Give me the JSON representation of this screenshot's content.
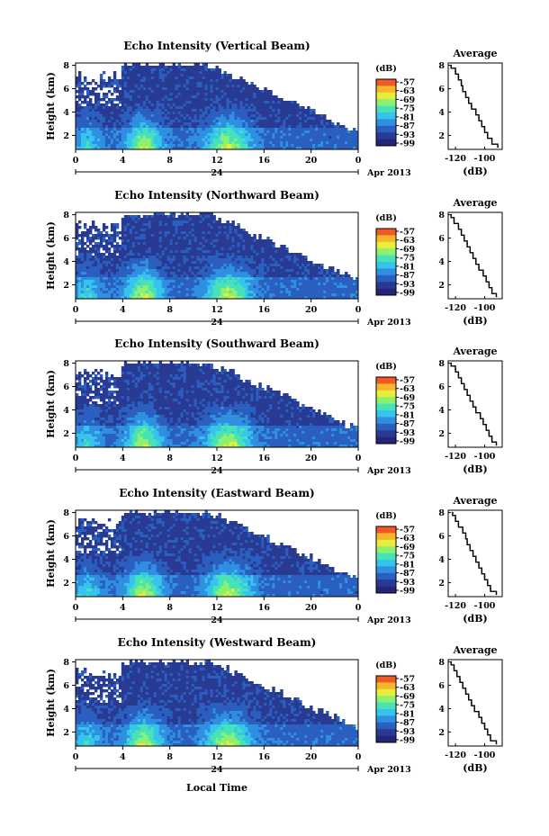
{
  "figure": {
    "xlabel": "Local Time",
    "date_label": "Apr 2013",
    "colorbar_label": "(dB)",
    "profile_title": "Average",
    "profile_xlabel": "(dB)"
  },
  "colors": {
    "background_fill": "#283a92",
    "colormap": [
      "#24247a",
      "#283a92",
      "#2a5fc0",
      "#2f8fe0",
      "#36c4ec",
      "#48e2b8",
      "#8ef070",
      "#e6ee3a",
      "#f7b52c",
      "#ee5a26"
    ]
  },
  "chart_data": [
    {
      "type": "heatmap",
      "title": "Echo Intensity (Vertical Beam)",
      "ylabel": "Height (km)",
      "x_ticks": [
        "0",
        "4",
        "8",
        "12",
        "16",
        "20",
        "0"
      ],
      "x_range": [
        0,
        24
      ],
      "day_tick_label": "24",
      "y_ticks": [
        "2",
        "4",
        "6",
        "8"
      ],
      "y_range": [
        0.8,
        8.2
      ],
      "colorbar_ticks": [
        "-57",
        "-63",
        "-69",
        "-75",
        "-81",
        "-87",
        "-93",
        "-99"
      ],
      "profile": {
        "title": "Average",
        "xlabel": "(dB)",
        "x_ticks": [
          "-120",
          "-100"
        ],
        "x_range": [
          -125,
          -88
        ],
        "y_ticks": [
          "2",
          "4",
          "6",
          "8"
        ],
        "y_range": [
          0.8,
          8.2
        ],
        "heights": [
          8.0,
          7.5,
          7.0,
          6.5,
          6.0,
          5.5,
          5.0,
          4.5,
          4.0,
          3.5,
          3.0,
          2.5,
          2.0,
          1.5,
          1.0
        ],
        "values": [
          -123,
          -120,
          -118,
          -116,
          -115,
          -113,
          -111,
          -109,
          -106,
          -104,
          -102,
          -100,
          -98,
          -95,
          -91
        ]
      }
    },
    {
      "type": "heatmap",
      "title": "Echo Intensity (Northward Beam)",
      "ylabel": "Height (km)",
      "x_ticks": [
        "0",
        "4",
        "8",
        "12",
        "16",
        "20",
        "0"
      ],
      "x_range": [
        0,
        24
      ],
      "day_tick_label": "24",
      "y_ticks": [
        "2",
        "4",
        "6",
        "8"
      ],
      "y_range": [
        0.8,
        8.2
      ],
      "colorbar_ticks": [
        "-57",
        "-63",
        "-69",
        "-75",
        "-81",
        "-87",
        "-93",
        "-99"
      ],
      "profile": {
        "title": "Average",
        "xlabel": "(dB)",
        "x_ticks": [
          "-120",
          "-100"
        ],
        "x_range": [
          -125,
          -88
        ],
        "y_ticks": [
          "2",
          "4",
          "6",
          "8"
        ],
        "y_range": [
          0.8,
          8.2
        ],
        "heights": [
          8.0,
          7.5,
          7.0,
          6.5,
          6.0,
          5.5,
          5.0,
          4.5,
          4.0,
          3.5,
          3.0,
          2.5,
          2.0,
          1.5,
          1.0
        ],
        "values": [
          -123,
          -121,
          -118,
          -116,
          -114,
          -112,
          -110,
          -108,
          -106,
          -104,
          -101,
          -99,
          -97,
          -95,
          -92
        ]
      }
    },
    {
      "type": "heatmap",
      "title": "Echo Intensity (Southward Beam)",
      "ylabel": "Height (km)",
      "x_ticks": [
        "0",
        "4",
        "8",
        "12",
        "16",
        "20",
        "0"
      ],
      "x_range": [
        0,
        24
      ],
      "day_tick_label": "24",
      "y_ticks": [
        "2",
        "4",
        "6",
        "8"
      ],
      "y_range": [
        0.8,
        8.2
      ],
      "colorbar_ticks": [
        "-57",
        "-63",
        "-69",
        "-75",
        "-81",
        "-87",
        "-93",
        "-99"
      ],
      "profile": {
        "title": "Average",
        "xlabel": "(dB)",
        "x_ticks": [
          "-120",
          "-100"
        ],
        "x_range": [
          -125,
          -88
        ],
        "y_ticks": [
          "2",
          "4",
          "6",
          "8"
        ],
        "y_range": [
          0.8,
          8.2
        ],
        "heights": [
          8.0,
          7.5,
          7.0,
          6.5,
          6.0,
          5.5,
          5.0,
          4.5,
          4.0,
          3.5,
          3.0,
          2.5,
          2.0,
          1.5,
          1.0
        ],
        "values": [
          -123,
          -120,
          -118,
          -116,
          -114,
          -112,
          -110,
          -108,
          -106,
          -103,
          -101,
          -99,
          -97,
          -95,
          -92
        ]
      }
    },
    {
      "type": "heatmap",
      "title": "Echo Intensity (Eastward Beam)",
      "ylabel": "Height (km)",
      "x_ticks": [
        "0",
        "4",
        "8",
        "12",
        "16",
        "20",
        "0"
      ],
      "x_range": [
        0,
        24
      ],
      "day_tick_label": "24",
      "y_ticks": [
        "2",
        "4",
        "6",
        "8"
      ],
      "y_range": [
        0.8,
        8.2
      ],
      "colorbar_ticks": [
        "-57",
        "-63",
        "-69",
        "-75",
        "-81",
        "-87",
        "-93",
        "-99"
      ],
      "profile": {
        "title": "Average",
        "xlabel": "(dB)",
        "x_ticks": [
          "-120",
          "-100"
        ],
        "x_range": [
          -125,
          -88
        ],
        "y_ticks": [
          "2",
          "4",
          "6",
          "8"
        ],
        "y_range": [
          0.8,
          8.2
        ],
        "heights": [
          8.0,
          7.5,
          7.0,
          6.5,
          6.0,
          5.5,
          5.0,
          4.5,
          4.0,
          3.5,
          3.0,
          2.5,
          2.0,
          1.5,
          1.0
        ],
        "values": [
          -122,
          -120,
          -118,
          -115,
          -113,
          -112,
          -110,
          -108,
          -106,
          -104,
          -102,
          -100,
          -98,
          -96,
          -92
        ]
      }
    },
    {
      "type": "heatmap",
      "title": "Echo Intensity (Westward Beam)",
      "ylabel": "Height (km)",
      "x_ticks": [
        "0",
        "4",
        "8",
        "12",
        "16",
        "20",
        "0"
      ],
      "x_range": [
        0,
        24
      ],
      "day_tick_label": "24",
      "y_ticks": [
        "2",
        "4",
        "6",
        "8"
      ],
      "y_range": [
        0.8,
        8.2
      ],
      "colorbar_ticks": [
        "-57",
        "-63",
        "-69",
        "-75",
        "-81",
        "-87",
        "-93",
        "-99"
      ],
      "profile": {
        "title": "Average",
        "xlabel": "(dB)",
        "x_ticks": [
          "-120",
          "-100"
        ],
        "x_range": [
          -125,
          -88
        ],
        "y_ticks": [
          "2",
          "4",
          "6",
          "8"
        ],
        "y_range": [
          0.8,
          8.2
        ],
        "heights": [
          8.0,
          7.5,
          7.0,
          6.5,
          6.0,
          5.5,
          5.0,
          4.5,
          4.0,
          3.5,
          3.0,
          2.5,
          2.0,
          1.5,
          1.0
        ],
        "values": [
          -123,
          -121,
          -119,
          -117,
          -115,
          -113,
          -111,
          -109,
          -107,
          -104,
          -102,
          -100,
          -98,
          -96,
          -92
        ]
      }
    }
  ]
}
